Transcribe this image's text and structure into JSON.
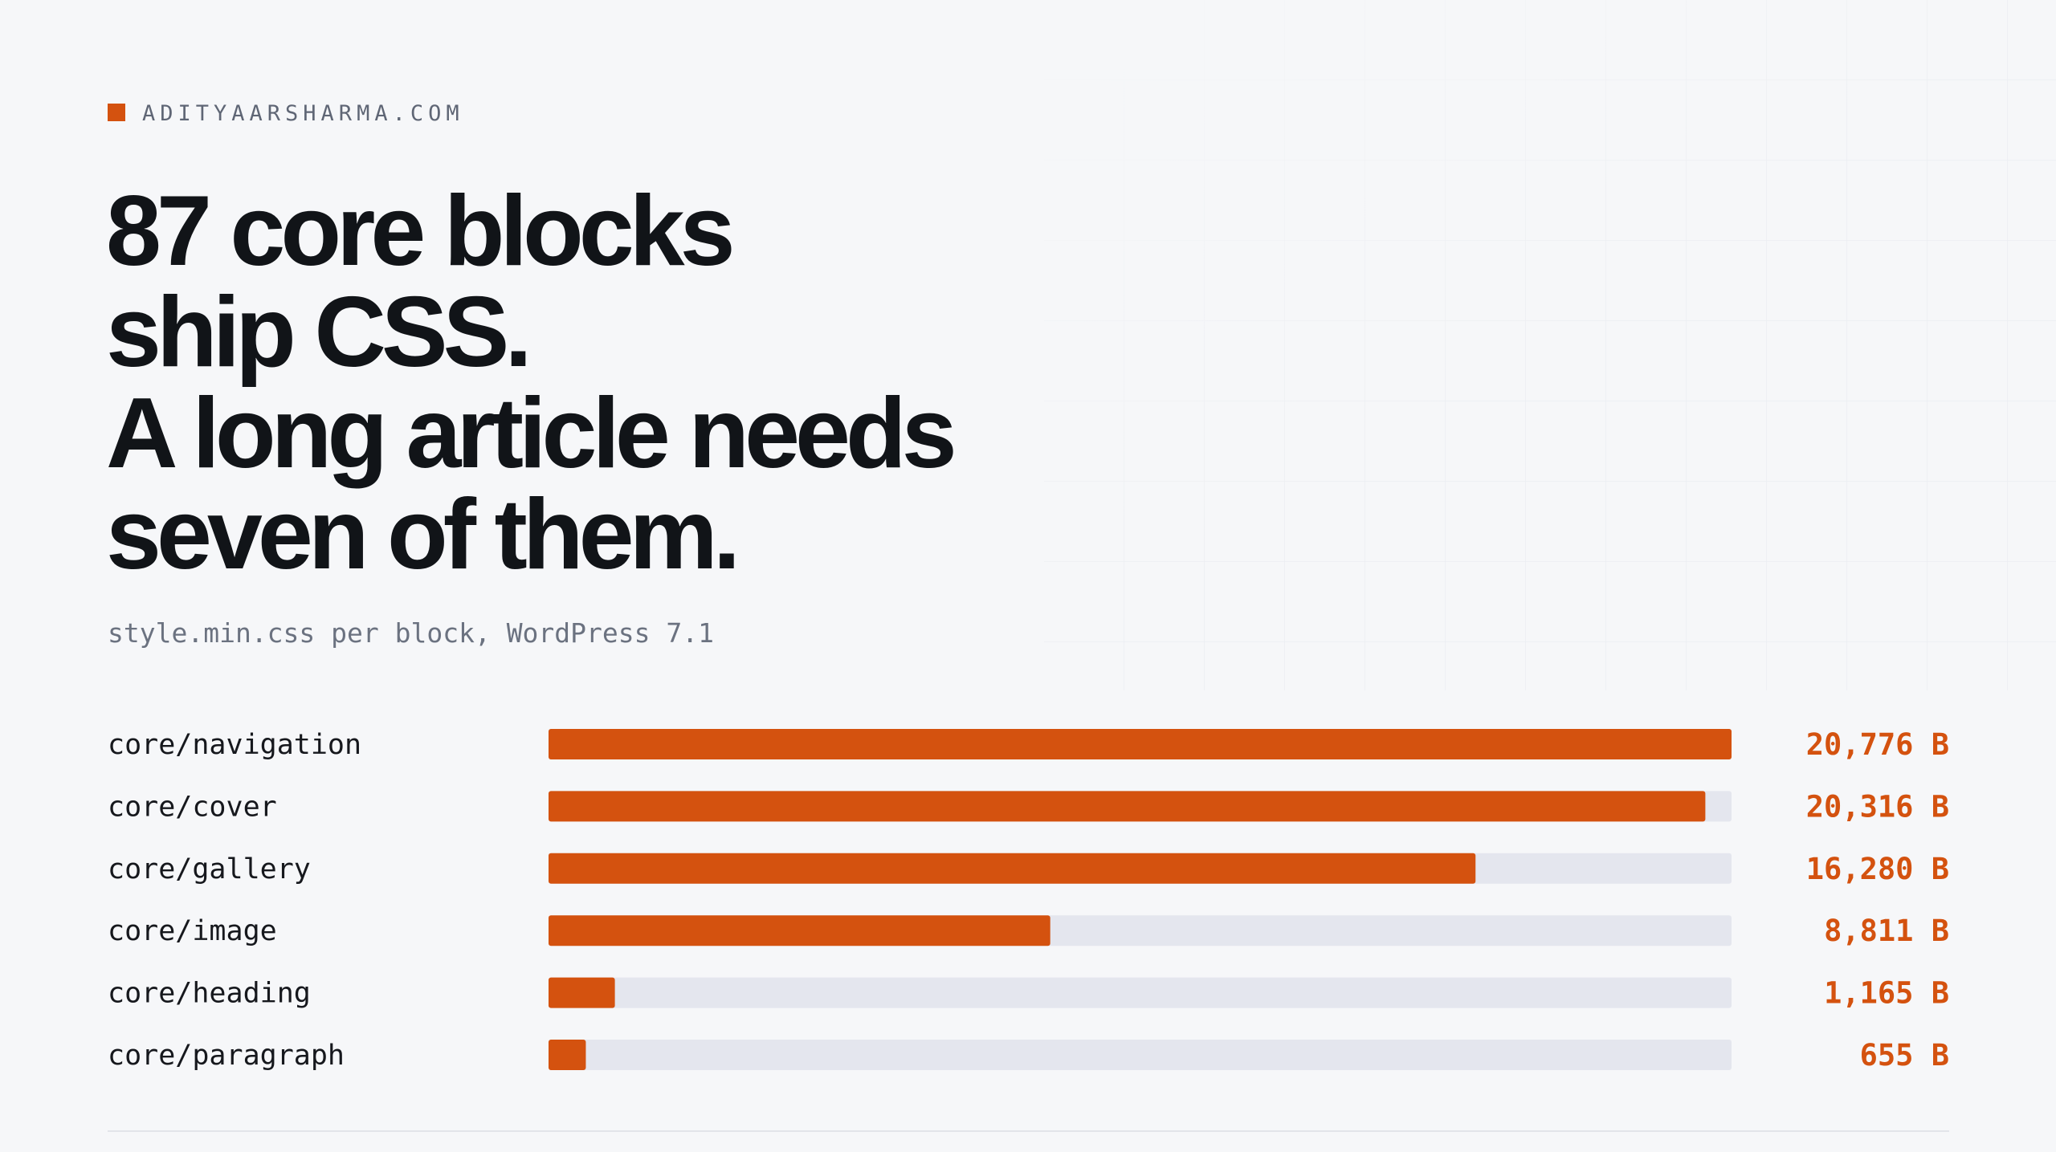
{
  "chart_data": {
    "type": "bar",
    "orientation": "horizontal",
    "brand": "ADITYAARSHARMA.COM",
    "title": [
      "87 core blocks",
      "ship CSS.",
      "A long article needs",
      "seven of them."
    ],
    "subtitle": "style.min.css per block, WordPress 7.1",
    "categories": [
      "core/navigation",
      "core/cover",
      "core/gallery",
      "core/image",
      "core/heading",
      "core/paragraph"
    ],
    "values": [
      20776,
      20316,
      16280,
      8811,
      1165,
      655
    ],
    "value_labels": [
      "20,776 B",
      "20,316 B",
      "16,280 B",
      "8,811 B",
      "1,165 B",
      "655 B"
    ],
    "xlim": [
      0,
      20776
    ],
    "color": "#d4520f"
  }
}
